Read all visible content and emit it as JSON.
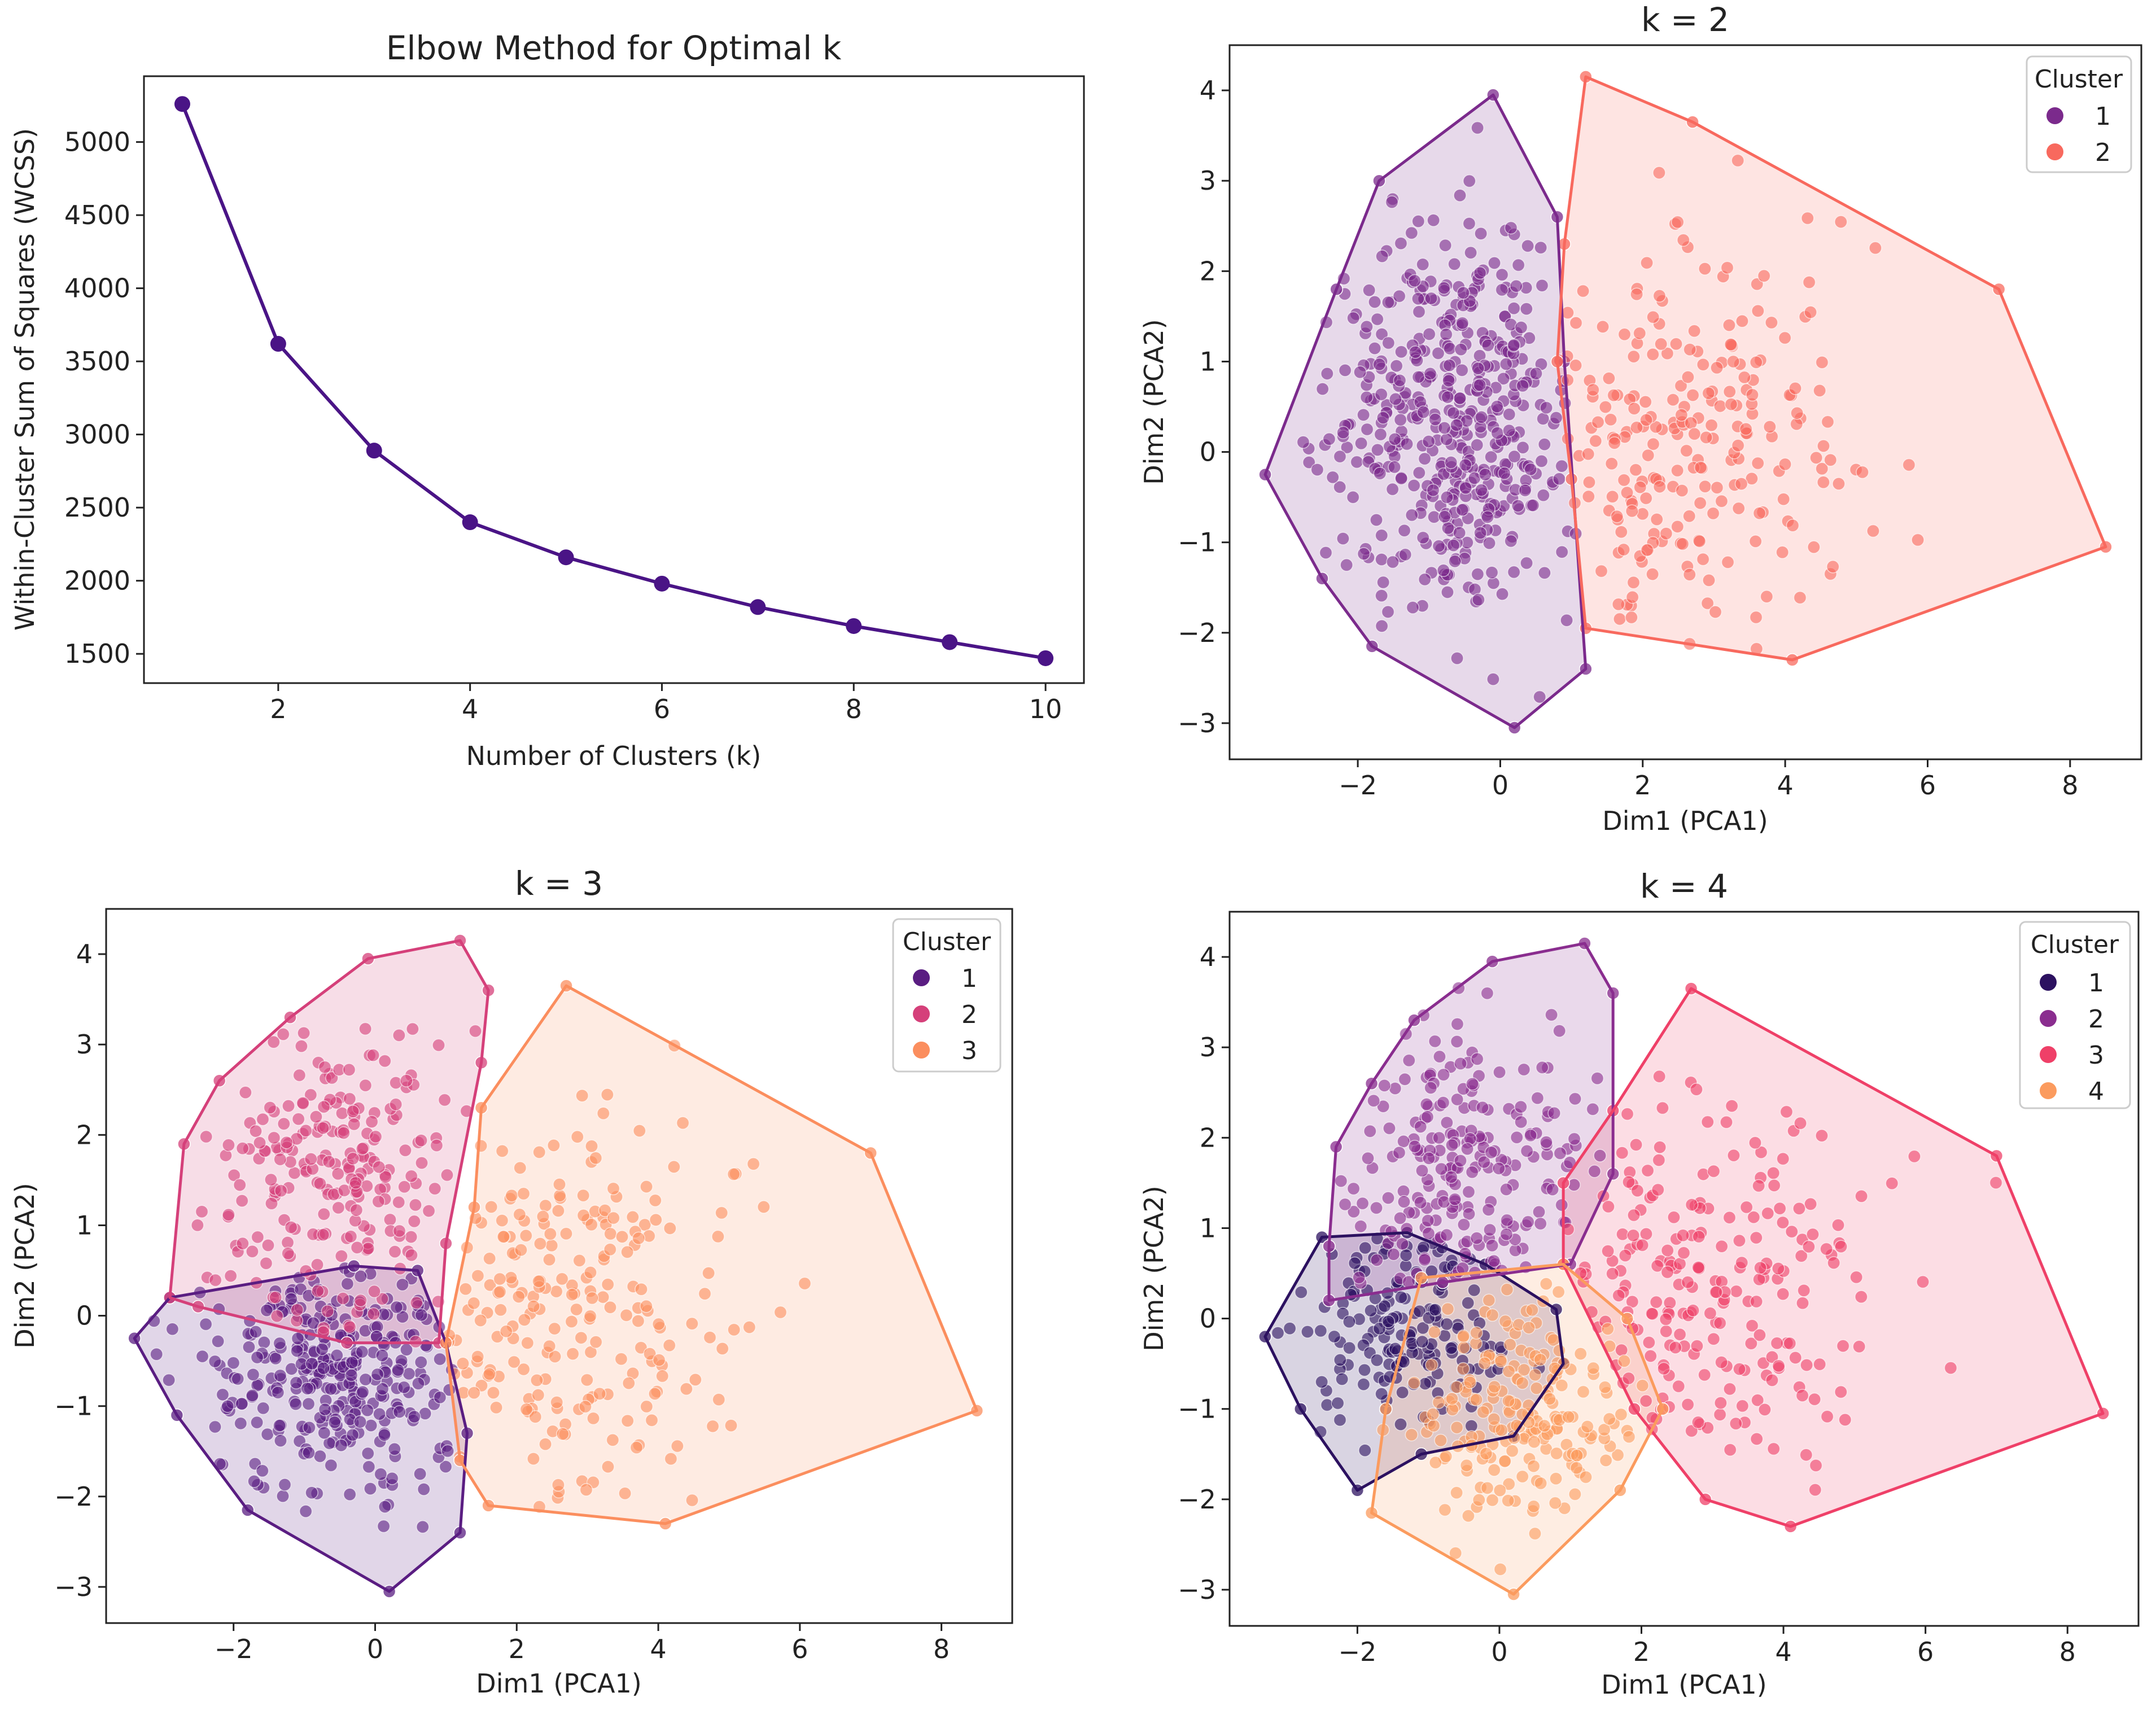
{
  "chart_data": [
    {
      "id": "elbow",
      "type": "line",
      "title": "Elbow Method for Optimal k",
      "xlabel": "Number of Clusters (k)",
      "ylabel": "Within-Cluster Sum of Squares (WCSS)",
      "xlim": [
        0.6,
        10.4
      ],
      "ylim": [
        1300,
        5450
      ],
      "xticks": [
        2,
        4,
        6,
        8,
        10
      ],
      "yticks": [
        1500,
        2000,
        2500,
        3000,
        3500,
        4000,
        4500,
        5000
      ],
      "x": [
        1,
        2,
        3,
        4,
        5,
        6,
        7,
        8,
        9,
        10
      ],
      "values": [
        5260,
        3620,
        2890,
        2400,
        2160,
        1980,
        1820,
        1690,
        1580,
        1470
      ],
      "color": "#4a1486"
    },
    {
      "id": "k2",
      "type": "scatter",
      "title": "k = 2",
      "xlabel": "Dim1 (PCA1)",
      "ylabel": "Dim2 (PCA2)",
      "xlim": [
        -3.8,
        9.0
      ],
      "ylim": [
        -3.4,
        4.5
      ],
      "xticks": [
        -2,
        0,
        2,
        4,
        6,
        8
      ],
      "yticks": [
        -3,
        -2,
        -1,
        0,
        1,
        2,
        3,
        4
      ],
      "legend_title": "Cluster",
      "clusters": [
        {
          "label": "1",
          "color": "#7b2a8c",
          "center": [
            -0.6,
            0.4
          ],
          "spread": [
            0.95,
            1.05
          ],
          "n": 480,
          "hull": [
            [
              -3.3,
              -0.25
            ],
            [
              -2.5,
              -1.4
            ],
            [
              -1.8,
              -2.15
            ],
            [
              0.2,
              -3.05
            ],
            [
              1.2,
              -2.4
            ],
            [
              0.9,
              1.0
            ],
            [
              0.8,
              2.6
            ],
            [
              -0.1,
              3.95
            ],
            [
              -1.7,
              3.0
            ],
            [
              -2.3,
              1.8
            ]
          ]
        },
        {
          "label": "2",
          "color": "#f8695e",
          "center": [
            2.4,
            0.1
          ],
          "spread": [
            1.3,
            1.1
          ],
          "n": 240,
          "hull": [
            [
              1.2,
              4.15
            ],
            [
              2.7,
              3.65
            ],
            [
              7.0,
              1.8
            ],
            [
              8.5,
              -1.05
            ],
            [
              4.1,
              -2.3
            ],
            [
              1.2,
              -1.95
            ],
            [
              1.0,
              -0.3
            ],
            [
              0.8,
              1.0
            ],
            [
              0.9,
              2.3
            ]
          ]
        }
      ]
    },
    {
      "id": "k3",
      "type": "scatter",
      "title": "k = 3",
      "xlabel": "Dim1 (PCA1)",
      "ylabel": "Dim2 (PCA2)",
      "xlim": [
        -3.8,
        9.0
      ],
      "ylim": [
        -3.4,
        4.5
      ],
      "xticks": [
        -2,
        0,
        2,
        4,
        6,
        8
      ],
      "yticks": [
        -3,
        -2,
        -1,
        0,
        1,
        2,
        3,
        4
      ],
      "legend_title": "Cluster",
      "clusters": [
        {
          "label": "1",
          "color": "#5a1d82",
          "center": [
            -0.5,
            -0.6
          ],
          "spread": [
            0.95,
            0.75
          ],
          "n": 320,
          "hull": [
            [
              -3.4,
              -0.25
            ],
            [
              -2.9,
              0.2
            ],
            [
              -0.3,
              0.55
            ],
            [
              0.6,
              0.5
            ],
            [
              1.0,
              -0.3
            ],
            [
              1.3,
              -1.3
            ],
            [
              1.2,
              -2.4
            ],
            [
              0.2,
              -3.05
            ],
            [
              -1.8,
              -2.15
            ],
            [
              -2.8,
              -1.1
            ]
          ]
        },
        {
          "label": "2",
          "color": "#d5407a",
          "center": [
            -0.5,
            1.5
          ],
          "spread": [
            0.85,
            0.9
          ],
          "n": 240,
          "hull": [
            [
              -2.9,
              0.2
            ],
            [
              -2.7,
              1.9
            ],
            [
              -2.2,
              2.6
            ],
            [
              -1.2,
              3.3
            ],
            [
              -0.1,
              3.95
            ],
            [
              1.2,
              4.15
            ],
            [
              1.6,
              3.6
            ],
            [
              1.5,
              2.8
            ],
            [
              1.0,
              0.8
            ],
            [
              0.9,
              -0.3
            ],
            [
              -0.4,
              -0.3
            ],
            [
              -2.5,
              0.1
            ]
          ]
        },
        {
          "label": "3",
          "color": "#fb8e5e",
          "center": [
            2.6,
            0.1
          ],
          "spread": [
            1.3,
            1.1
          ],
          "n": 230,
          "hull": [
            [
              2.7,
              3.65
            ],
            [
              7.0,
              1.8
            ],
            [
              8.5,
              -1.05
            ],
            [
              4.1,
              -2.3
            ],
            [
              1.6,
              -2.1
            ],
            [
              1.2,
              -1.6
            ],
            [
              1.0,
              -0.3
            ],
            [
              1.4,
              1.2
            ],
            [
              1.5,
              2.3
            ]
          ]
        }
      ]
    },
    {
      "id": "k4",
      "type": "scatter",
      "title": "k = 4",
      "xlabel": "Dim1 (PCA1)",
      "ylabel": "Dim2 (PCA2)",
      "xlim": [
        -3.8,
        9.0
      ],
      "ylim": [
        -3.4,
        4.5
      ],
      "xticks": [
        -2,
        0,
        2,
        4,
        6,
        8
      ],
      "yticks": [
        -3,
        -2,
        -1,
        0,
        1,
        2,
        3,
        4
      ],
      "legend_title": "Cluster",
      "clusters": [
        {
          "label": "1",
          "color": "#2c1160",
          "center": [
            -1.4,
            -0.1
          ],
          "spread": [
            0.75,
            0.6
          ],
          "n": 170,
          "hull": [
            [
              -3.3,
              -0.2
            ],
            [
              -2.5,
              0.9
            ],
            [
              -1.3,
              0.95
            ],
            [
              -0.2,
              0.6
            ],
            [
              0.8,
              0.1
            ],
            [
              0.9,
              -0.5
            ],
            [
              0.2,
              -1.3
            ],
            [
              -1.1,
              -1.5
            ],
            [
              -2.0,
              -1.9
            ],
            [
              -2.8,
              -1.0
            ]
          ]
        },
        {
          "label": "2",
          "color": "#8a2d8f",
          "center": [
            -0.6,
            1.5
          ],
          "spread": [
            0.85,
            0.85
          ],
          "n": 230,
          "hull": [
            [
              -2.4,
              0.8
            ],
            [
              -2.3,
              1.9
            ],
            [
              -1.8,
              2.6
            ],
            [
              -1.2,
              3.3
            ],
            [
              -0.1,
              3.95
            ],
            [
              1.2,
              4.15
            ],
            [
              1.6,
              3.6
            ],
            [
              1.6,
              1.6
            ],
            [
              1.0,
              0.6
            ],
            [
              -0.8,
              0.4
            ],
            [
              -2.4,
              0.2
            ]
          ]
        },
        {
          "label": "3",
          "color": "#ef4068",
          "center": [
            2.6,
            0.3
          ],
          "spread": [
            1.3,
            1.1
          ],
          "n": 230,
          "hull": [
            [
              2.7,
              3.65
            ],
            [
              7.0,
              1.8
            ],
            [
              8.5,
              -1.05
            ],
            [
              4.1,
              -2.3
            ],
            [
              2.9,
              -2.0
            ],
            [
              1.9,
              -1.0
            ],
            [
              0.9,
              0.6
            ],
            [
              0.9,
              1.5
            ],
            [
              1.6,
              2.3
            ]
          ]
        },
        {
          "label": "4",
          "color": "#fb9b5e",
          "center": [
            0.3,
            -1.1
          ],
          "spread": [
            0.75,
            0.65
          ],
          "n": 210,
          "hull": [
            [
              -1.1,
              0.45
            ],
            [
              0.9,
              0.6
            ],
            [
              1.8,
              0.0
            ],
            [
              2.3,
              -1.0
            ],
            [
              1.7,
              -1.9
            ],
            [
              0.2,
              -3.05
            ],
            [
              -1.8,
              -2.15
            ],
            [
              -1.6,
              -1.0
            ]
          ]
        }
      ]
    }
  ]
}
